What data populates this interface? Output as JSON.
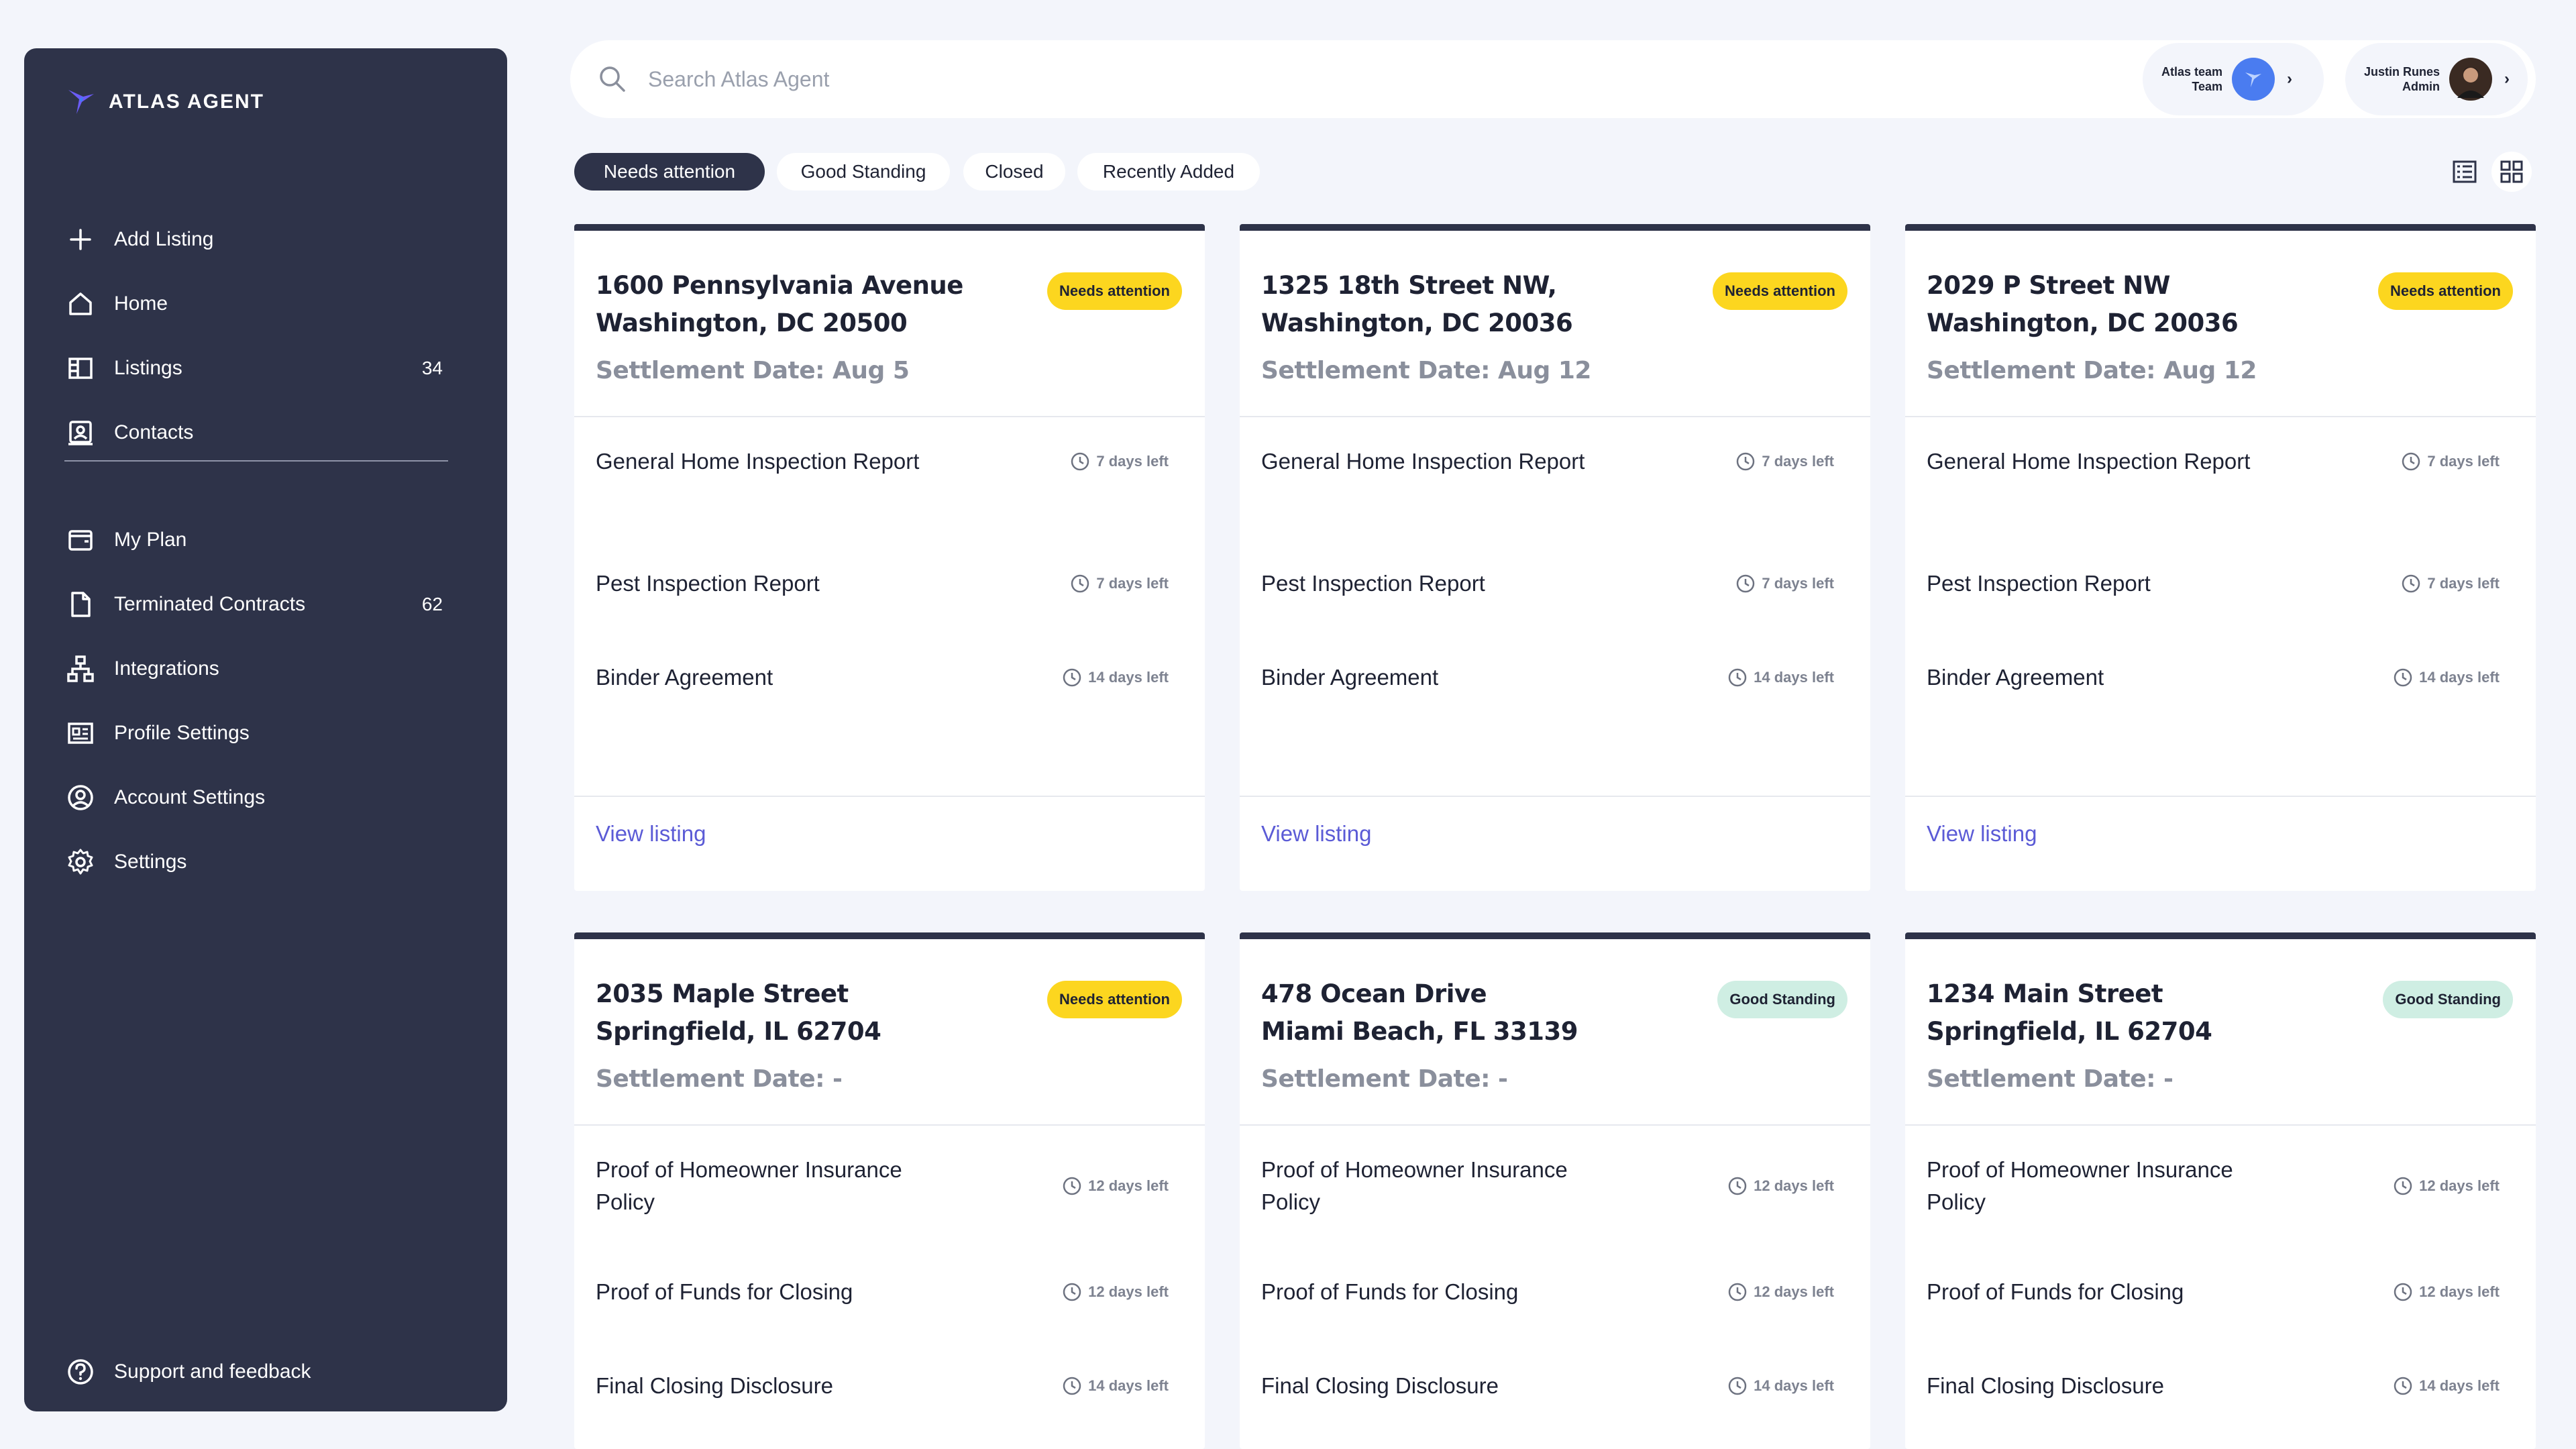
{
  "app": {
    "brand": "ATLAS AGENT"
  },
  "sidebar": {
    "items": [
      {
        "label": "Add Listing",
        "icon": "plus-icon",
        "count": ""
      },
      {
        "label": "Home",
        "icon": "home-icon",
        "count": ""
      },
      {
        "label": "Listings",
        "icon": "listings-icon",
        "count": "34"
      },
      {
        "label": "Contacts",
        "icon": "contacts-icon",
        "count": ""
      },
      {
        "label": "My Plan",
        "icon": "wallet-icon",
        "count": ""
      },
      {
        "label": "Terminated Contracts",
        "icon": "document-icon",
        "count": "62"
      },
      {
        "label": "Integrations",
        "icon": "hierarchy-icon",
        "count": ""
      },
      {
        "label": "Profile Settings",
        "icon": "profile-card-icon",
        "count": ""
      },
      {
        "label": "Account Settings",
        "icon": "user-circle-icon",
        "count": ""
      },
      {
        "label": "Settings",
        "icon": "gear-icon",
        "count": ""
      }
    ],
    "support": {
      "label": "Support and feedback",
      "icon": "question-icon"
    }
  },
  "search": {
    "placeholder": "Search Atlas Agent"
  },
  "team_chip": {
    "name": "Atlas team",
    "role": "Team"
  },
  "user_chip": {
    "name": "Justin Runes",
    "role": "Admin"
  },
  "filters": [
    "Needs attention",
    "Good Standing",
    "Closed",
    "Recently Added"
  ],
  "active_filter": "Needs attention",
  "colors": {
    "sidebar": "#2e3349",
    "attention": "#fcd61f",
    "good": "#cfeee3",
    "link": "#5b5bd6",
    "background": "#f3f5fb"
  },
  "cards": [
    {
      "address_line1": "1600 Pennsylvania Avenue",
      "address_line2": "Washington, DC 20500",
      "settlement": "Settlement Date: Aug 5",
      "status": "Needs attention",
      "tasks": [
        {
          "name": "General Home Inspection Report",
          "time": "7 days left"
        },
        {
          "name": "Pest Inspection Report",
          "time": "7 days left"
        },
        {
          "name": "Binder Agreement",
          "time": "14 days left"
        }
      ],
      "link": "View listing"
    },
    {
      "address_line1": "1325 18th Street NW,",
      "address_line2": "Washington, DC 20036",
      "settlement": "Settlement Date: Aug 12",
      "status": "Needs attention",
      "tasks": [
        {
          "name": "General Home Inspection Report",
          "time": "7 days left"
        },
        {
          "name": "Pest Inspection Report",
          "time": "7 days left"
        },
        {
          "name": "Binder Agreement",
          "time": "14 days left"
        }
      ],
      "link": "View listing"
    },
    {
      "address_line1": "2029 P Street NW",
      "address_line2": "Washington, DC 20036",
      "settlement": "Settlement Date: Aug 12",
      "status": "Needs attention",
      "tasks": [
        {
          "name": "General Home Inspection Report",
          "time": "7 days left"
        },
        {
          "name": "Pest Inspection Report",
          "time": "7 days left"
        },
        {
          "name": "Binder Agreement",
          "time": "14 days left"
        }
      ],
      "link": "View listing"
    },
    {
      "address_line1": "2035 Maple Street",
      "address_line2": "Springfield, IL 62704",
      "settlement": "Settlement Date: -",
      "status": "Needs attention",
      "tasks": [
        {
          "name": "Proof of Homeowner Insurance Policy",
          "time": "12 days left"
        },
        {
          "name": "Proof of Funds for Closing",
          "time": "12 days left"
        },
        {
          "name": "Final Closing Disclosure",
          "time": "14 days left"
        }
      ],
      "link": ""
    },
    {
      "address_line1": "478 Ocean Drive",
      "address_line2": "Miami Beach, FL 33139",
      "settlement": "Settlement Date: -",
      "status": "Good Standing",
      "tasks": [
        {
          "name": "Proof of Homeowner Insurance Policy",
          "time": "12 days left"
        },
        {
          "name": "Proof of Funds for Closing",
          "time": "12 days left"
        },
        {
          "name": "Final Closing Disclosure",
          "time": "14 days left"
        }
      ],
      "link": ""
    },
    {
      "address_line1": "1234 Main Street",
      "address_line2": "Springfield, IL 62704",
      "settlement": "Settlement Date: -",
      "status": "Good Standing",
      "tasks": [
        {
          "name": "Proof of Homeowner Insurance Policy",
          "time": "12 days left"
        },
        {
          "name": "Proof of Funds for Closing",
          "time": "12 days left"
        },
        {
          "name": "Final Closing Disclosure",
          "time": "14 days left"
        }
      ],
      "link": ""
    }
  ]
}
